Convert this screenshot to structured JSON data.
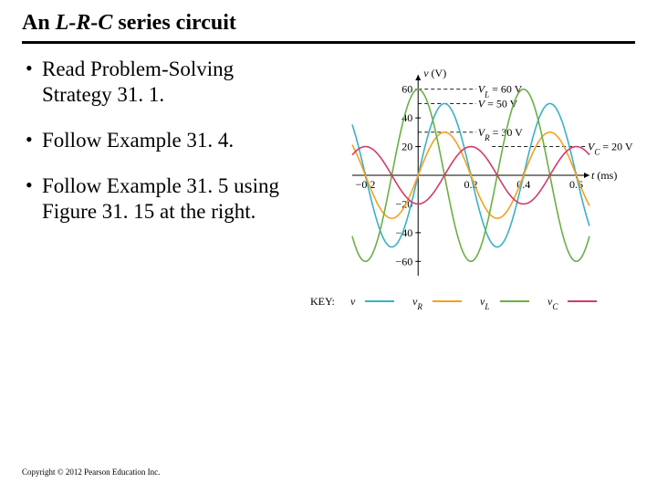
{
  "title_prefix": "An ",
  "title_italic": "L-R-C",
  "title_suffix": " series circuit",
  "bullets": [
    "Read Problem-Solving Strategy 31. 1.",
    "Follow Example 31. 4.",
    "Follow Example 31. 5 using Figure 31. 15 at the right."
  ],
  "copyright": "Copyright © 2012 Pearson Education Inc.",
  "chart": {
    "type": "line",
    "xlim": [
      -0.25,
      0.65
    ],
    "ylim": [
      -70,
      70
    ],
    "xticks": [
      -0.2,
      0.2,
      0.4,
      0.6
    ],
    "yticks_pos": [
      20,
      40,
      60
    ],
    "yticks_neg": [
      -20,
      -40,
      -60
    ],
    "background_color": "#ffffff",
    "grid": false,
    "axis_color": "#000000",
    "ylabel_html": "v (V)",
    "xlabel_html": "t (ms)",
    "series": [
      {
        "name": "v",
        "color": "#39b2c4",
        "amplitude": 50,
        "phase": 0.0,
        "width": 1.6
      },
      {
        "name": "v_R",
        "color": "#f6a021",
        "amplitude": 30,
        "phase": 0.0,
        "width": 1.6
      },
      {
        "name": "v_L",
        "color": "#6ab043",
        "amplitude": 60,
        "phase": 1.5708,
        "width": 1.6
      },
      {
        "name": "v_C",
        "color": "#d13b6e",
        "amplitude": 20,
        "phase": -1.5708,
        "width": 1.6
      }
    ],
    "period_ms": 0.4,
    "dashed_lines": [
      {
        "y": 60,
        "label_html": "V_L = 60 V",
        "color": "#000"
      },
      {
        "y": 50,
        "label_html": "V = 50 V",
        "color": "#000"
      },
      {
        "y": 30,
        "label_html": "V_R = 30 V",
        "color": "#000"
      }
    ],
    "right_annot": {
      "y": 20,
      "label_html": "V_C = 20 V"
    },
    "key": [
      {
        "name": "v",
        "symbol": "v",
        "color": "#39b2c4"
      },
      {
        "name": "v_R",
        "symbol": "v_R",
        "color": "#f6a021"
      },
      {
        "name": "v_L",
        "symbol": "v_L",
        "color": "#6ab043"
      },
      {
        "name": "v_C",
        "symbol": "v_C",
        "color": "#d13b6e"
      }
    ]
  }
}
